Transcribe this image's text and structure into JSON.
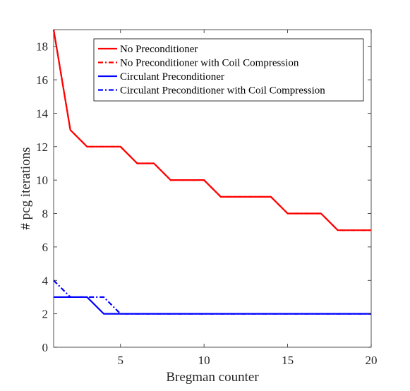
{
  "chart_data": {
    "type": "line",
    "xlabel": "Bregman counter",
    "ylabel": "# pcg iterations",
    "xlim": [
      1,
      20
    ],
    "ylim": [
      0,
      19
    ],
    "x_ticks": [
      5,
      10,
      15,
      20
    ],
    "y_ticks": [
      0,
      2,
      4,
      6,
      8,
      10,
      12,
      14,
      16,
      18
    ],
    "grid": false,
    "legend_position": "top-right",
    "x": [
      1,
      2,
      3,
      4,
      5,
      6,
      7,
      8,
      9,
      10,
      11,
      12,
      13,
      14,
      15,
      16,
      17,
      18,
      19,
      20
    ],
    "series": [
      {
        "name": "No Preconditioner",
        "color": "#ff0000",
        "style": "solid",
        "values": [
          19,
          13,
          12,
          12,
          12,
          11,
          11,
          10,
          10,
          10,
          9,
          9,
          9,
          9,
          8,
          8,
          8,
          7,
          7,
          7
        ]
      },
      {
        "name": "No Preconditioner with Coil Compression",
        "color": "#ff0000",
        "style": "dashdot",
        "values": [
          19,
          13,
          12,
          12,
          12,
          11,
          11,
          10,
          10,
          10,
          9,
          9,
          9,
          9,
          8,
          8,
          8,
          7,
          7,
          7
        ]
      },
      {
        "name": "Circulant Preconditioner",
        "color": "#0000ff",
        "style": "solid",
        "values": [
          3,
          3,
          3,
          2,
          2,
          2,
          2,
          2,
          2,
          2,
          2,
          2,
          2,
          2,
          2,
          2,
          2,
          2,
          2,
          2
        ]
      },
      {
        "name": "Circulant Preconditioner with Coil Compression",
        "color": "#0000ff",
        "style": "dashdot",
        "values": [
          4,
          3,
          3,
          3,
          2,
          2,
          2,
          2,
          2,
          2,
          2,
          2,
          2,
          2,
          2,
          2,
          2,
          2,
          2,
          2
        ]
      }
    ]
  }
}
